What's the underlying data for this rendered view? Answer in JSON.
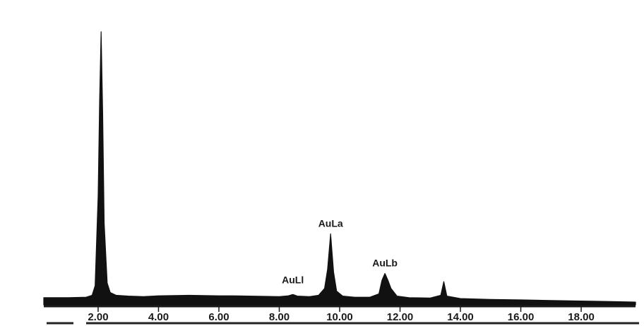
{
  "chart_data": {
    "type": "line",
    "title": "",
    "xlabel": "",
    "ylabel": "",
    "xlim": [
      0.2,
      19.8
    ],
    "ylim": [
      0,
      100
    ],
    "grid": false,
    "xticks": [
      2,
      4,
      6,
      8,
      10,
      12,
      14,
      16,
      18
    ],
    "xtick_labels": [
      "2.00",
      "4.00",
      "6.00",
      "8.00",
      "10.00",
      "12.00",
      "14.00",
      "16.00",
      "18.00"
    ],
    "baseline": 3,
    "peaks": [
      {
        "x": 2.1,
        "height": 100,
        "width": 0.13,
        "label": ""
      },
      {
        "x": 8.45,
        "height": 0.8,
        "width": 0.12,
        "label": "AuLl"
      },
      {
        "x": 9.7,
        "height": 23,
        "width": 0.12,
        "label": "AuLa"
      },
      {
        "x": 11.5,
        "height": 9,
        "width": 0.16,
        "label": "AuLb"
      },
      {
        "x": 13.45,
        "height": 6,
        "width": 0.05,
        "label": ""
      }
    ],
    "series": [
      {
        "x": [
          0.2,
          1.0,
          1.6,
          1.8,
          1.9,
          2.0,
          2.05,
          2.1,
          2.15,
          2.2,
          2.3,
          2.4,
          2.6,
          3.0,
          3.5,
          4.0,
          4.5,
          5.0,
          5.5,
          6.0,
          6.5,
          7.0,
          7.5,
          8.0,
          8.3,
          8.45,
          8.6,
          9.0,
          9.3,
          9.5,
          9.6,
          9.7,
          9.8,
          9.9,
          10.1,
          10.5,
          11.0,
          11.3,
          11.4,
          11.5,
          11.6,
          11.7,
          11.9,
          12.3,
          13.0,
          13.35,
          13.45,
          13.55,
          14.0,
          15.0,
          16.0,
          17.0,
          18.0,
          19.0,
          19.8
        ],
        "y": [
          2.6,
          2.6,
          2.8,
          3.5,
          7,
          40,
          75,
          100,
          70,
          30,
          8,
          4.5,
          3.5,
          3.2,
          3.0,
          3.3,
          3.4,
          3.5,
          3.4,
          3.3,
          3.3,
          3.2,
          3.1,
          3.0,
          3.3,
          3.8,
          3.2,
          3.0,
          3.5,
          6,
          13,
          26,
          12,
          5,
          3.2,
          2.8,
          2.8,
          4,
          9,
          11.5,
          9,
          6,
          3.2,
          2.6,
          2.5,
          3.5,
          8.5,
          3.2,
          2.3,
          2.0,
          1.8,
          1.6,
          1.4,
          1.2,
          1.0
        ]
      }
    ]
  }
}
